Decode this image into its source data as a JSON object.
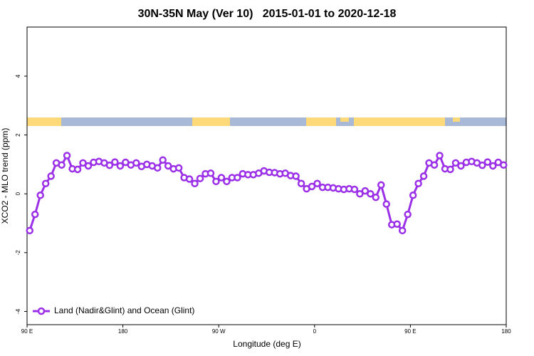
{
  "chart_data": {
    "type": "line",
    "title": "30N-35N May (Ver 10)   2015-01-01 to 2020-12-18",
    "xlabel": "Longitude (deg E)",
    "ylabel": "XCO2 - MLO trend (ppm)",
    "xlim": [
      90,
      540
    ],
    "xticks": [
      {
        "value": 90,
        "label": "90 E"
      },
      {
        "value": 180,
        "label": "180"
      },
      {
        "value": 270,
        "label": "90 W"
      },
      {
        "value": 360,
        "label": "0"
      },
      {
        "value": 450,
        "label": "90 E"
      },
      {
        "value": 540,
        "label": "180"
      }
    ],
    "ylim": [
      -4.45,
      5.67
    ],
    "yticks": [
      -4,
      -2,
      0,
      2,
      4
    ],
    "legend": "bottomleft",
    "x": [
      92.5,
      97.5,
      102.5,
      107.5,
      112.5,
      117.5,
      122.5,
      127.5,
      132.5,
      137.5,
      142.5,
      147.5,
      152.5,
      157.5,
      162.5,
      167.5,
      172.5,
      177.5,
      182.5,
      187.5,
      192.5,
      197.5,
      202.5,
      207.5,
      212.5,
      217.5,
      222.5,
      227.5,
      232.5,
      237.5,
      242.5,
      247.5,
      252.5,
      257.5,
      262.5,
      267.5,
      272.5,
      277.5,
      282.5,
      287.5,
      292.5,
      297.5,
      302.5,
      307.5,
      312.5,
      317.5,
      322.5,
      327.5,
      332.5,
      337.5,
      342.5,
      347.5,
      352.5,
      357.5,
      362.5,
      367.5,
      372.5,
      377.5,
      382.5,
      387.5,
      392.5,
      397.5,
      402.5,
      407.5,
      412.5,
      417.5,
      422.5,
      427.5,
      432.5,
      437.5,
      442.5,
      447.5,
      452.5,
      457.5,
      462.5,
      467.5,
      472.5,
      477.5,
      482.5,
      487.5,
      492.5,
      497.5,
      502.5,
      507.5,
      512.5,
      517.5,
      522.5,
      527.5,
      532.5,
      537.5
    ],
    "series": [
      {
        "name": "Land (Nadir&Glint) and Ocean (Glint)",
        "color": "#9b30e8",
        "values": [
          -1.25,
          -0.7,
          -0.05,
          0.35,
          0.6,
          1.05,
          0.98,
          1.3,
          0.85,
          0.83,
          1.05,
          0.95,
          1.07,
          1.1,
          1.05,
          0.97,
          1.08,
          0.95,
          1.07,
          0.98,
          1.05,
          0.93,
          1.0,
          0.95,
          0.88,
          1.15,
          0.95,
          0.85,
          0.88,
          0.55,
          0.5,
          0.35,
          0.52,
          0.68,
          0.7,
          0.42,
          0.55,
          0.42,
          0.55,
          0.55,
          0.68,
          0.65,
          0.65,
          0.7,
          0.78,
          0.73,
          0.72,
          0.68,
          0.7,
          0.62,
          0.6,
          0.35,
          0.17,
          0.25,
          0.35,
          0.22,
          0.22,
          0.2,
          0.17,
          0.15,
          0.17,
          0.15,
          0.0,
          0.1,
          0.0,
          -0.12,
          0.3,
          -0.35,
          -1.05,
          -1.03,
          -1.25,
          -0.7,
          -0.05,
          0.35,
          0.6,
          1.05,
          0.98,
          1.3,
          0.85,
          0.83,
          1.05,
          0.95,
          1.07,
          1.1,
          1.05,
          0.97,
          1.08,
          0.95,
          1.07,
          0.98
        ]
      }
    ]
  }
}
